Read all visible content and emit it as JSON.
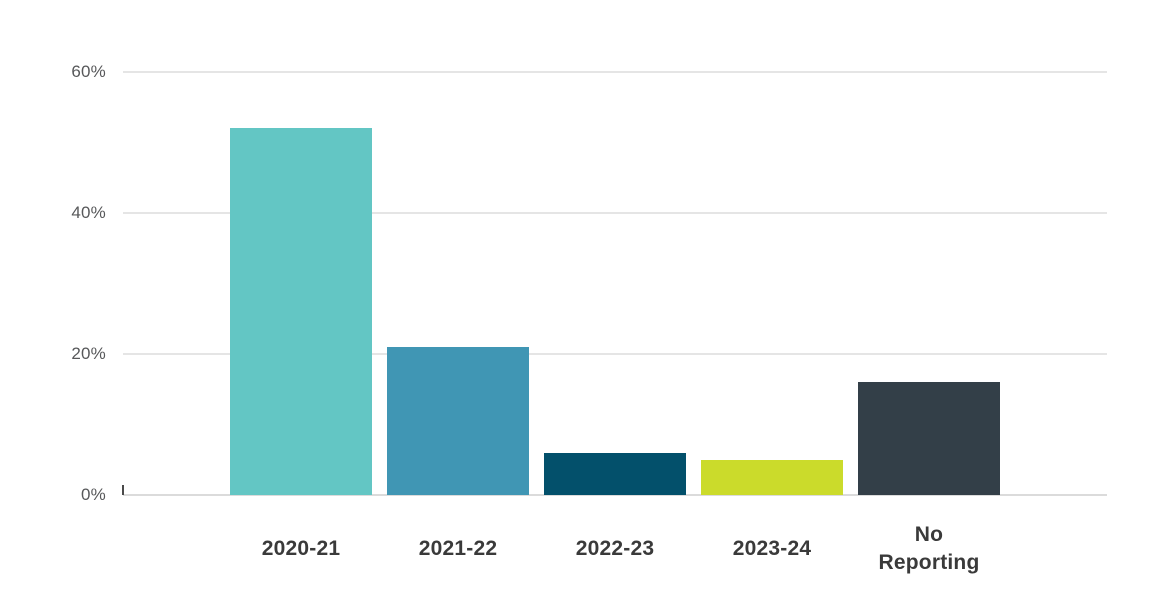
{
  "chart_data": {
    "type": "bar",
    "categories": [
      "2020-21",
      "2021-22",
      "2022-23",
      "2023-24",
      "No\nReporting"
    ],
    "values": [
      52,
      21,
      6,
      5,
      16
    ],
    "unit": "%",
    "title": "",
    "xlabel": "",
    "ylabel": "",
    "ylim": [
      0,
      64
    ],
    "yticks": [
      0,
      20,
      40,
      60
    ],
    "ytick_labels": [
      "0%",
      "20%",
      "40%",
      "60%"
    ],
    "grid": "horizontal",
    "legend": "none",
    "bar_colors": [
      "#63C6C4",
      "#4096B4",
      "#03506B",
      "#CBDB2B",
      "#333F48"
    ]
  },
  "styles": {
    "background_color": "#FFFFFF",
    "gridline_color": "#E5E5E5",
    "baseline_color": "#DBDBDB",
    "origin_tick_color": "#4A4A4A",
    "ytick_label_color": "#57585A",
    "xtick_label_color": "#3A3A3A"
  }
}
